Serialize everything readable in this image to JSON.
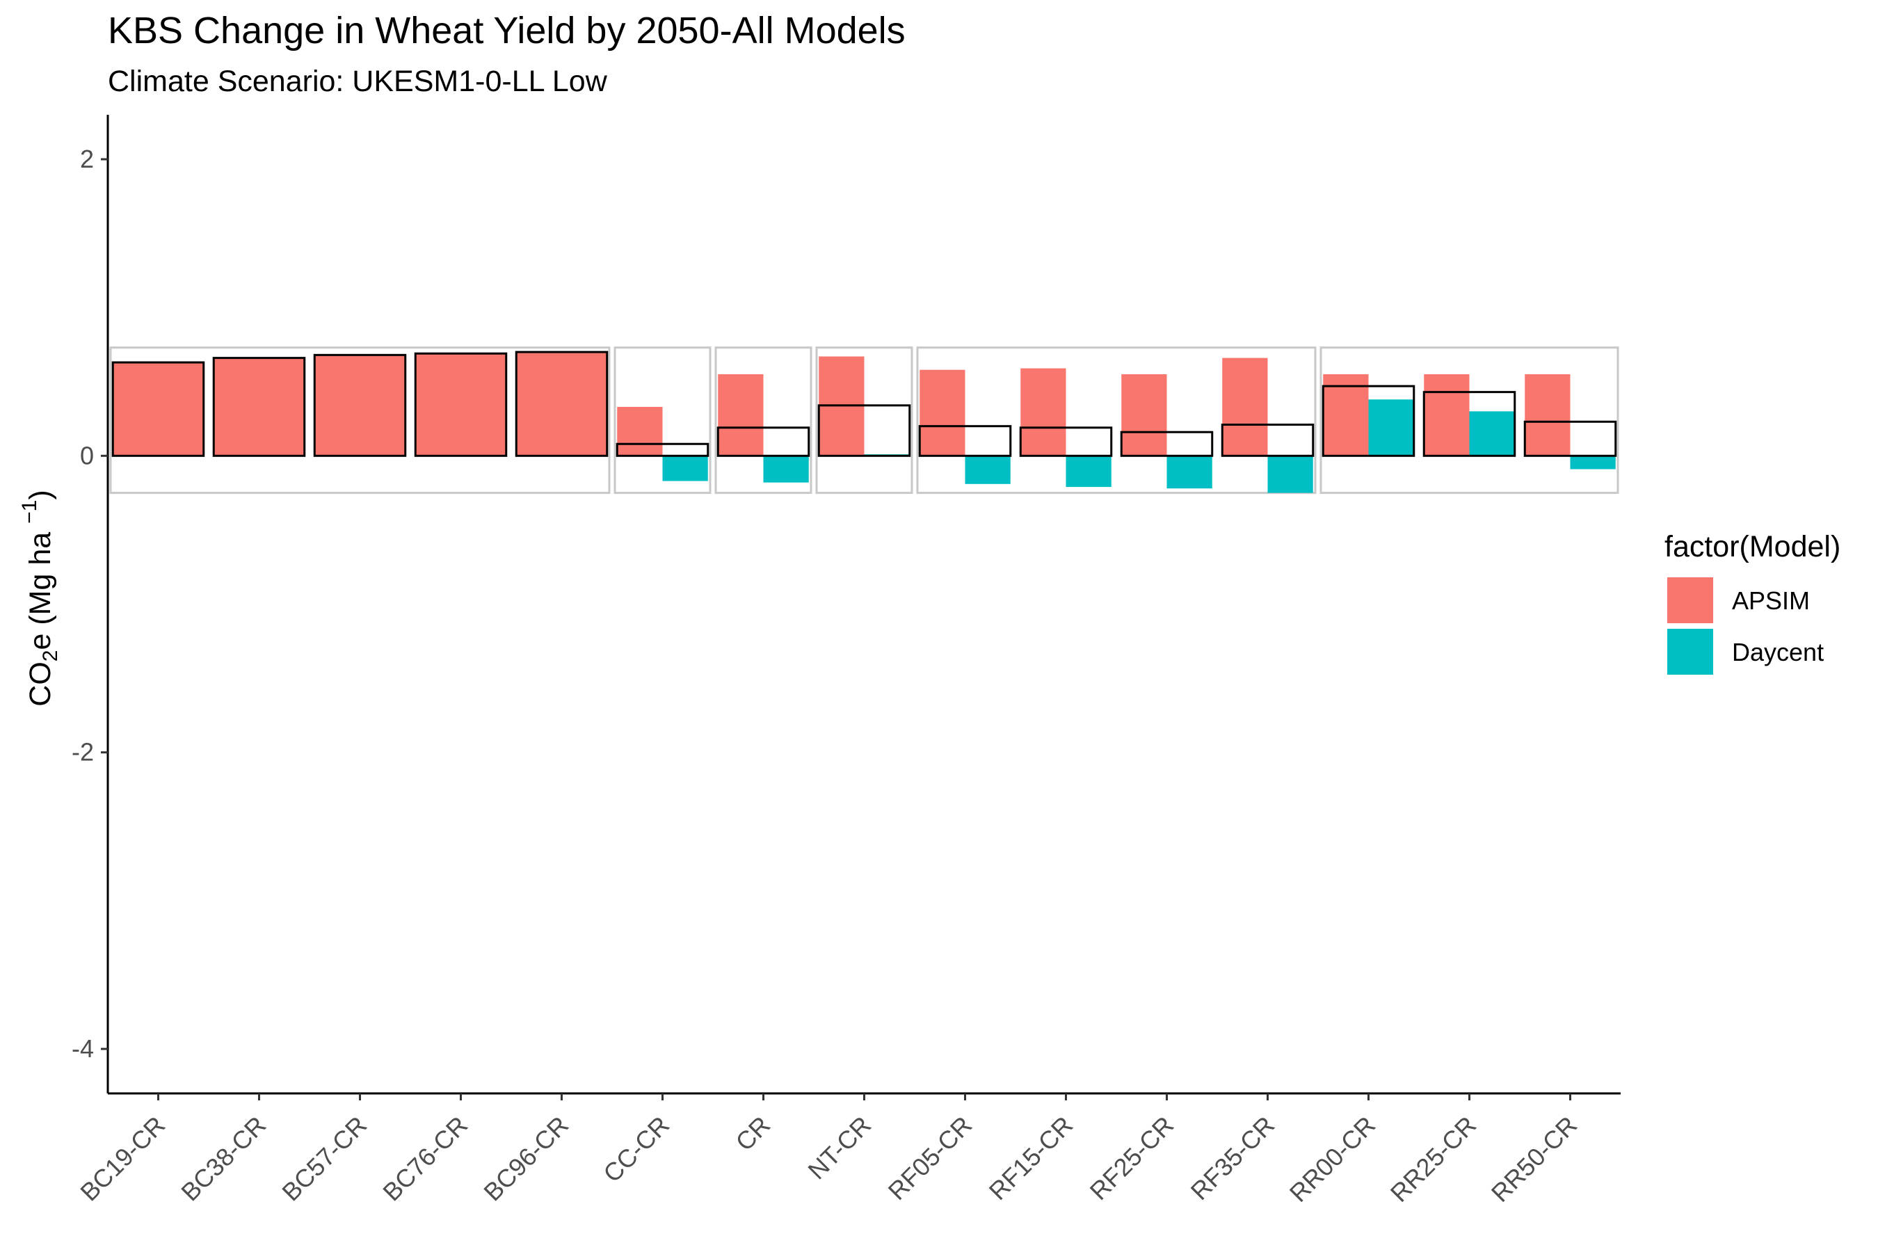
{
  "chart_data": {
    "type": "bar",
    "title": "KBS Change in Wheat Yield by 2050-All Models",
    "subtitle": "Climate Scenario: UKESM1-0-LL Low",
    "ylabel": "CO2e (Mg ha^-1)",
    "ylim": [
      -4.3,
      2.3
    ],
    "yticks": [
      2,
      0,
      -2,
      -4
    ],
    "grid": false,
    "legend": {
      "title": "factor(Model)",
      "placement": "right",
      "entries": [
        {
          "name": "APSIM",
          "color": "#F8766D"
        },
        {
          "name": "Daycent",
          "color": "#00BFC4"
        }
      ]
    },
    "categories": [
      "BC19-CR",
      "BC38-CR",
      "BC57-CR",
      "BC76-CR",
      "BC96-CR",
      "CC-CR",
      "CR",
      "NT-CR",
      "RF05-CR",
      "RF15-CR",
      "RF25-CR",
      "RF35-CR",
      "RR00-CR",
      "RR25-CR",
      "RR50-CR"
    ],
    "series": [
      {
        "name": "APSIM",
        "color": "#F8766D",
        "values": [
          0.63,
          0.66,
          0.68,
          0.69,
          0.7,
          0.33,
          0.55,
          0.67,
          0.58,
          0.59,
          0.55,
          0.66,
          0.55,
          0.55,
          0.55
        ]
      },
      {
        "name": "Daycent",
        "color": "#00BFC4",
        "values": [
          null,
          null,
          null,
          null,
          null,
          -0.17,
          -0.18,
          0.01,
          -0.19,
          -0.21,
          -0.22,
          -0.25,
          0.38,
          0.3,
          -0.09
        ]
      }
    ],
    "mean_outline": [
      0.63,
      0.66,
      0.68,
      0.69,
      0.7,
      0.08,
      0.19,
      0.34,
      0.2,
      0.19,
      0.16,
      0.21,
      0.47,
      0.43,
      0.23
    ],
    "group_boxes": [
      {
        "from": 0,
        "to": 4
      },
      {
        "from": 5,
        "to": 5
      },
      {
        "from": 6,
        "to": 6
      },
      {
        "from": 7,
        "to": 7
      },
      {
        "from": 8,
        "to": 11
      },
      {
        "from": 12,
        "to": 14
      }
    ],
    "group_box_range": [
      -0.25,
      0.73
    ]
  }
}
